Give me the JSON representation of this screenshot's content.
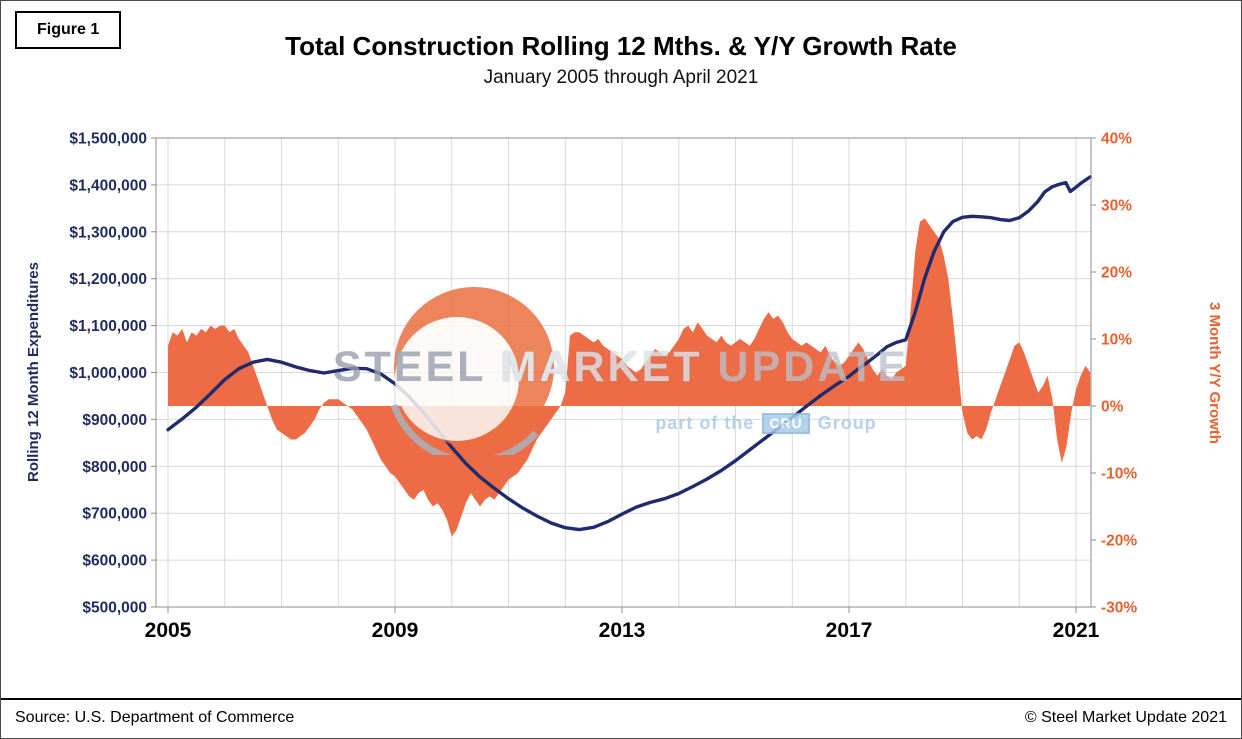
{
  "figure": {
    "label": "Figure 1"
  },
  "watermark": {
    "steel": "STEEL",
    "market": "MARKET",
    "update": "UPDATE",
    "part_of": "part of the",
    "cru": "CRU",
    "group": "Group"
  },
  "footer": {
    "source": "Source: U.S. Department of Commerce",
    "copyright": "© Steel Market Update 2021"
  },
  "colors": {
    "navy_line": "#1F2B6E",
    "navy_axis": "#1F2B5E",
    "orange_area": "#ED6C46",
    "orange_axis": "#E8602F",
    "grid": "#D9D9D9"
  },
  "chart_data": {
    "type": "combo",
    "title": "Total Construction Rolling 12 Mths. & Y/Y Growth Rate",
    "subtitle": "January 2005 through April 2021",
    "grid": true,
    "legend": "none",
    "x_axis": {
      "min": 2005,
      "max": 2021.33,
      "gridline_interval_years": 1,
      "ticks": {
        "labels": [
          "2005",
          "2009",
          "2013",
          "2017",
          "2021"
        ],
        "values": [
          2005,
          2009,
          2013,
          2017,
          2021
        ]
      }
    },
    "left_axis": {
      "label": "Rolling 12 Month Expenditures",
      "min": 500000,
      "max": 1500000,
      "ticks": {
        "labels": [
          "$1,500,000",
          "$1,400,000",
          "$1,300,000",
          "$1,200,000",
          "$1,100,000",
          "$1,000,000",
          "$900,000",
          "$800,000",
          "$700,000",
          "$600,000",
          "$500,000"
        ],
        "values": [
          1500000,
          1400000,
          1300000,
          1200000,
          1100000,
          1000000,
          900000,
          800000,
          700000,
          600000,
          500000
        ]
      }
    },
    "right_axis": {
      "label": "3 Month Y/Y Growth",
      "min": -30,
      "max": 40,
      "ticks": {
        "labels": [
          "40%",
          "30%",
          "20%",
          "10%",
          "0%",
          "-10%",
          "-20%",
          "-30%"
        ],
        "values": [
          40,
          30,
          20,
          10,
          0,
          -10,
          -20,
          -30
        ]
      }
    },
    "series": [
      {
        "name": "3 Month Y/Y Growth (%)",
        "type": "area",
        "axis": "right",
        "color": "#ED6C46",
        "baseline": 0,
        "start_year": 2005.0,
        "interval_months": 1,
        "values": [
          9,
          11,
          10.5,
          11.5,
          9.5,
          11,
          10.5,
          11.5,
          11,
          12,
          11.5,
          12,
          12,
          11,
          11.5,
          10,
          9,
          8,
          6,
          4,
          2,
          0,
          -2,
          -3.5,
          -4,
          -4.5,
          -5,
          -5,
          -4.5,
          -4,
          -3,
          -2,
          -0.5,
          0.5,
          1,
          1,
          1,
          0.5,
          0,
          -0.5,
          -1.5,
          -2.5,
          -3.5,
          -5,
          -6.5,
          -8,
          -9,
          -10,
          -10.5,
          -11.5,
          -12.5,
          -13.5,
          -14,
          -13,
          -12.5,
          -14,
          -15,
          -14.5,
          -15.5,
          -17,
          -19.5,
          -18.5,
          -16.5,
          -14.5,
          -13,
          -14,
          -15,
          -14,
          -13.5,
          -14,
          -13,
          -12,
          -11,
          -10.5,
          -10,
          -9,
          -8,
          -6.5,
          -5,
          -4,
          -3,
          -2,
          -1,
          0,
          2,
          10.5,
          11,
          11,
          10.5,
          10,
          9.5,
          10,
          9,
          8.5,
          8,
          7.5,
          7,
          6,
          5.5,
          5,
          5.5,
          6.5,
          7.5,
          8.5,
          8,
          7.5,
          8,
          9,
          10,
          11.5,
          12,
          11,
          12.5,
          11.5,
          10.5,
          10,
          9.5,
          10.5,
          9.5,
          9,
          9.5,
          10,
          9.5,
          9,
          10,
          11.5,
          13,
          14,
          13,
          13.5,
          12.5,
          11,
          10,
          9.5,
          9,
          9.5,
          9,
          8.5,
          8,
          9,
          7.5,
          6.5,
          6,
          6.5,
          7.5,
          8.5,
          9.5,
          8.5,
          7,
          5.5,
          4.5,
          5.5,
          4.5,
          4,
          5,
          5.5,
          6,
          14,
          23,
          27.5,
          28,
          27,
          26,
          25,
          22.5,
          19,
          13,
          6,
          -1,
          -4,
          -5,
          -4.5,
          -5,
          -3.5,
          -1,
          1,
          3,
          5,
          7,
          9,
          9.5,
          8,
          6,
          4,
          2,
          3,
          4.5,
          1,
          -5,
          -8.5,
          -6,
          -1,
          2.5,
          4.5,
          6,
          5
        ]
      },
      {
        "name": "Rolling 12 Month Expenditures ($000s)",
        "type": "line",
        "axis": "left",
        "color": "#1F2B6E",
        "x": [
          2005.0,
          2005.25,
          2005.5,
          2005.75,
          2006.0,
          2006.25,
          2006.5,
          2006.75,
          2007.0,
          2007.25,
          2007.5,
          2007.75,
          2008.0,
          2008.25,
          2008.5,
          2008.75,
          2009.0,
          2009.25,
          2009.5,
          2009.75,
          2010.0,
          2010.25,
          2010.5,
          2010.75,
          2011.0,
          2011.25,
          2011.5,
          2011.75,
          2012.0,
          2012.25,
          2012.5,
          2012.75,
          2013.0,
          2013.25,
          2013.5,
          2013.75,
          2014.0,
          2014.25,
          2014.5,
          2014.75,
          2015.0,
          2015.25,
          2015.5,
          2015.75,
          2016.0,
          2016.25,
          2016.5,
          2016.75,
          2017.0,
          2017.17,
          2017.33,
          2017.5,
          2017.67,
          2017.83,
          2018.0,
          2018.17,
          2018.33,
          2018.5,
          2018.67,
          2018.83,
          2019.0,
          2019.17,
          2019.33,
          2019.5,
          2019.67,
          2019.83,
          2020.0,
          2020.17,
          2020.33,
          2020.45,
          2020.58,
          2020.7,
          2020.82,
          2020.9,
          2021.0,
          2021.1,
          2021.25
        ],
        "values": [
          878000,
          901000,
          926000,
          955000,
          985000,
          1008000,
          1022000,
          1028000,
          1022000,
          1012000,
          1004000,
          999000,
          1004000,
          1009000,
          1008000,
          997000,
          976000,
          948000,
          915000,
          878000,
          840000,
          806000,
          777000,
          753000,
          731000,
          711000,
          694000,
          679000,
          669000,
          665000,
          670000,
          682000,
          698000,
          713000,
          723000,
          731000,
          742000,
          757000,
          773000,
          791000,
          812000,
          835000,
          858000,
          881000,
          904000,
          928000,
          951000,
          972000,
          992000,
          1008000,
          1022000,
          1038000,
          1055000,
          1064000,
          1070000,
          1130000,
          1200000,
          1258000,
          1300000,
          1322000,
          1331000,
          1333000,
          1332000,
          1330000,
          1326000,
          1324000,
          1330000,
          1345000,
          1365000,
          1385000,
          1396000,
          1401000,
          1405000,
          1386000,
          1395000,
          1405000,
          1417000
        ]
      }
    ]
  }
}
